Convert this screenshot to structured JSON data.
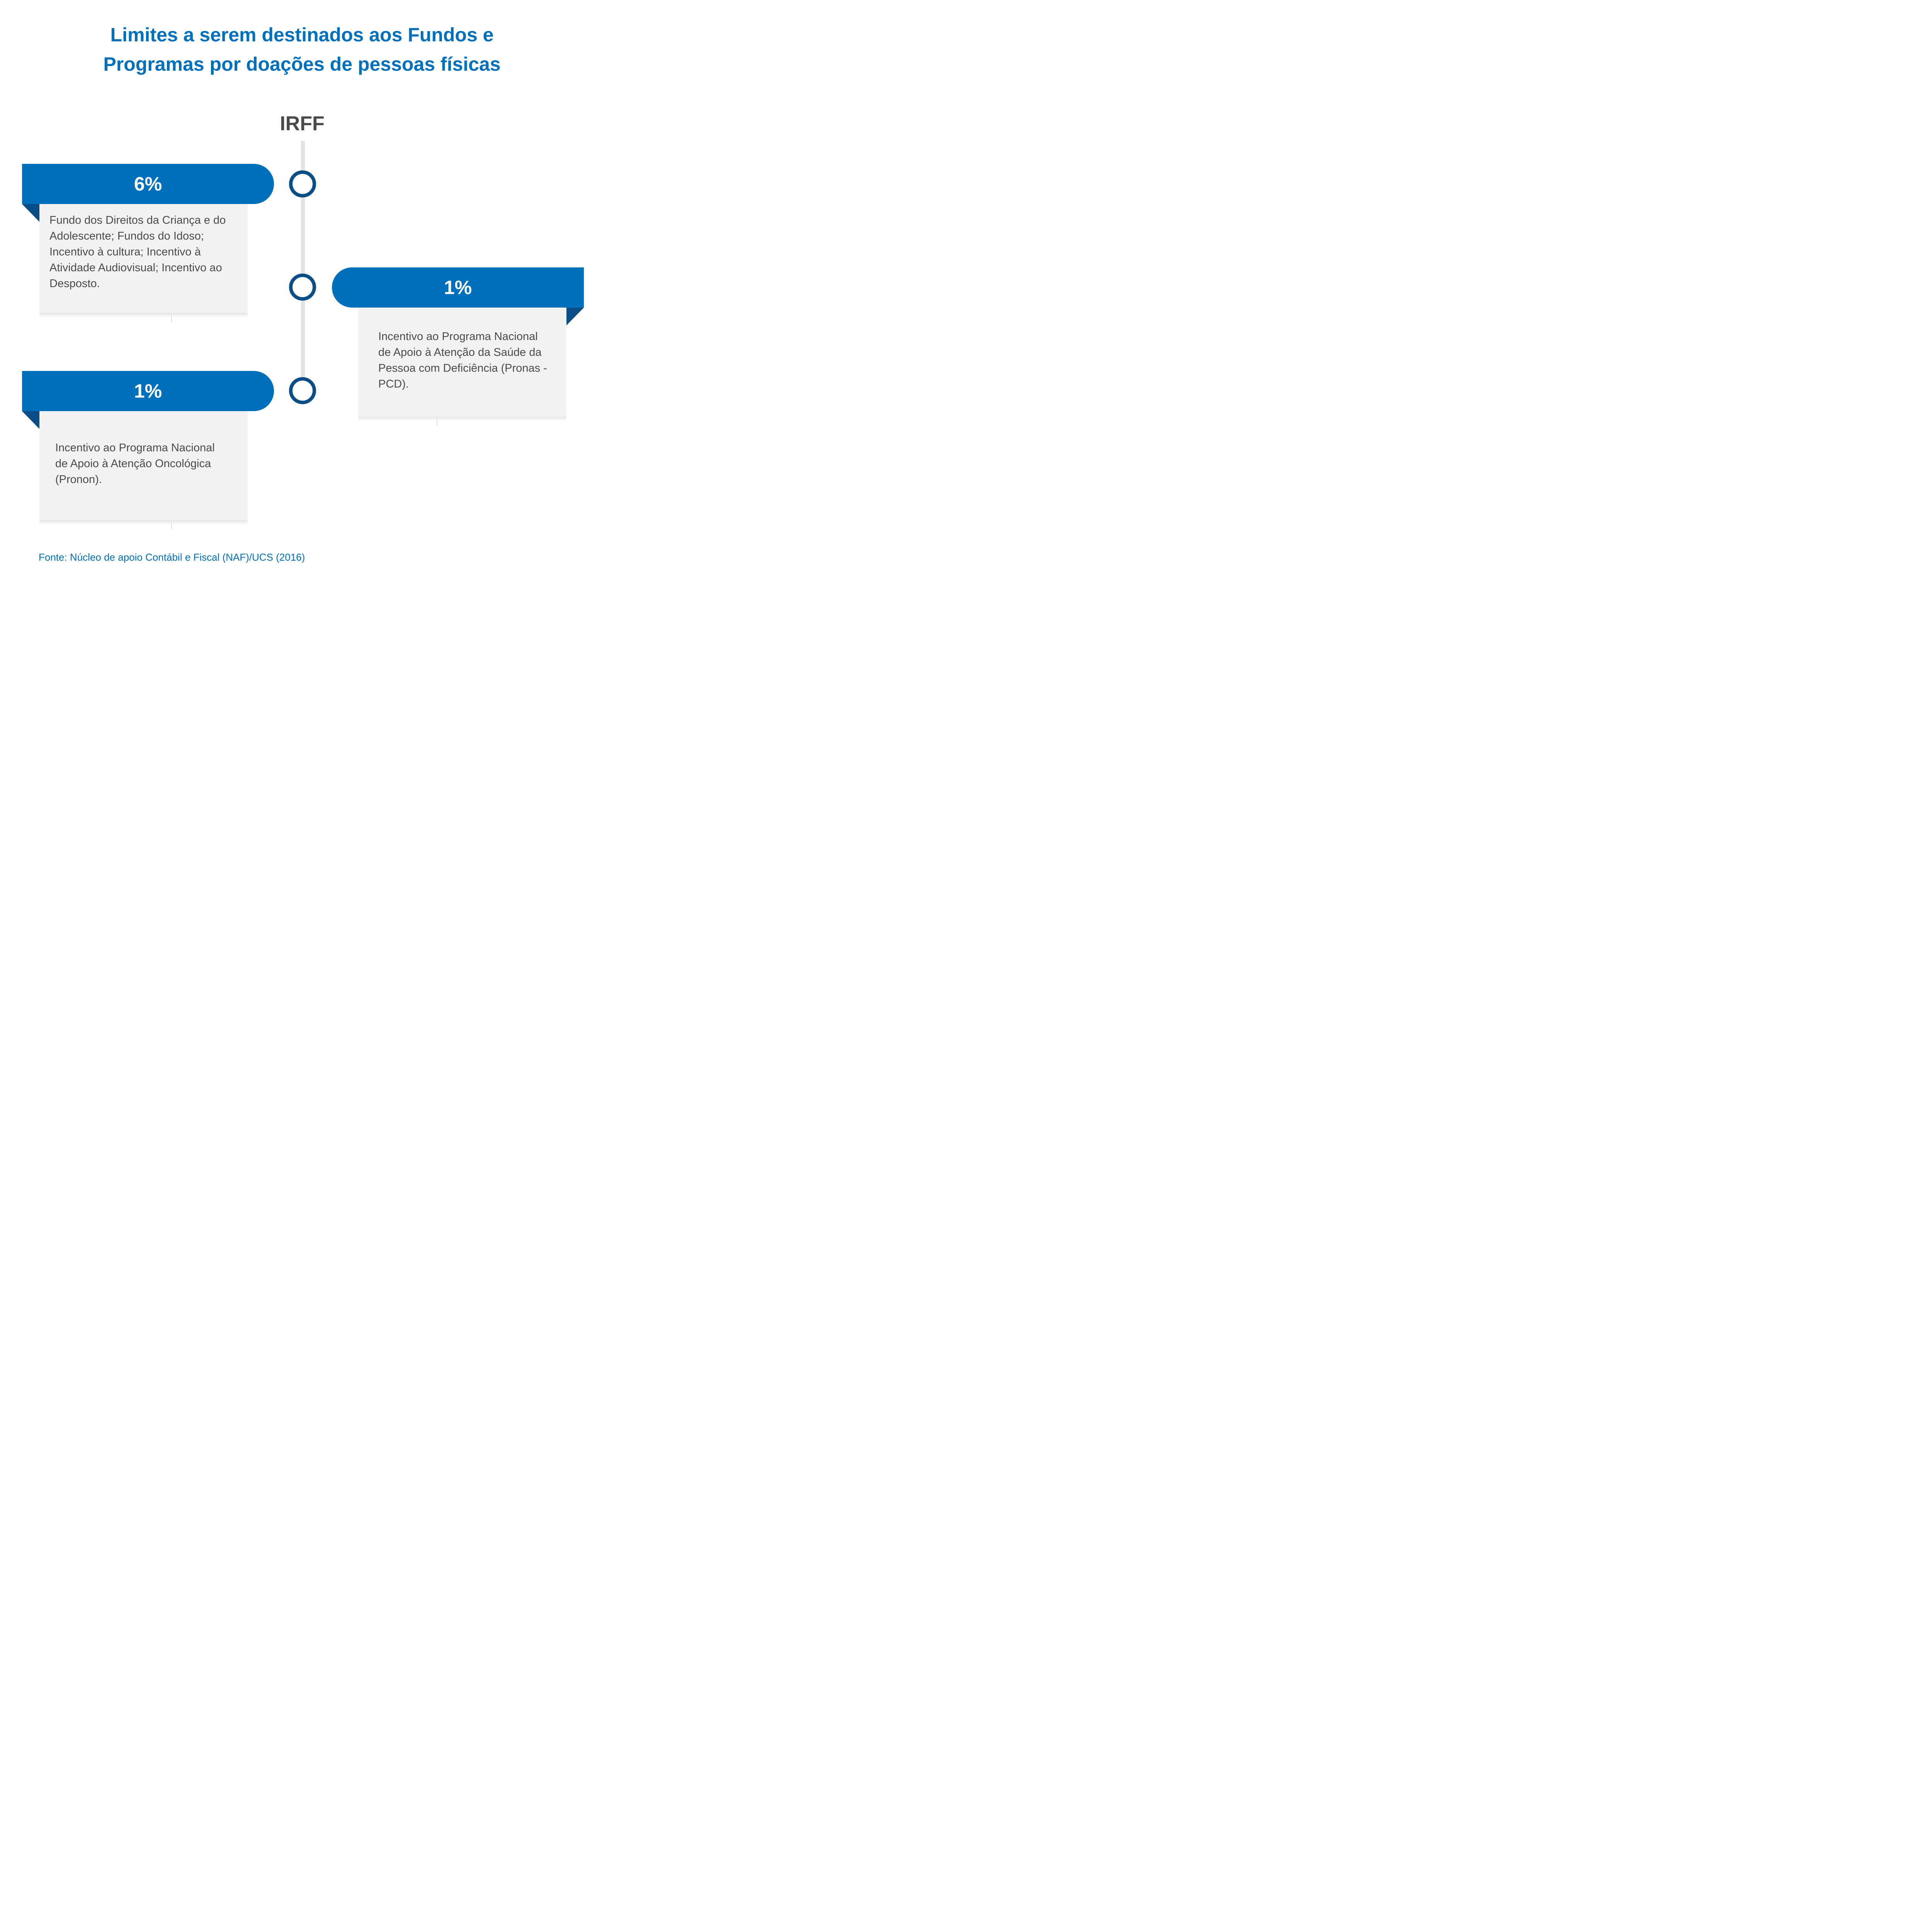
{
  "title": {
    "line1": "Limites a serem destinados aos Fundos e",
    "line2": "Programas por doações de pessoas físicas"
  },
  "center_label": "IRFF",
  "items": [
    {
      "percent": "6%",
      "side": "left",
      "description": "Fundo dos Direitos da Criança e do Adolescente; Fundos do Idoso; Incentivo à cultura; Incentivo à Atividade Audiovisual; Incentivo ao Desposto."
    },
    {
      "percent": "1%",
      "side": "right",
      "description": "Incentivo ao Programa Nacional de Apoio à Atenção da Saúde da Pessoa com Deficiência (Pronas - PCD)."
    },
    {
      "percent": "1%",
      "side": "left",
      "description": "Incentivo ao Programa Nacional de Apoio à Atenção Oncológica (Pronon)."
    }
  ],
  "source": "Fonte: Núcleo de apoio Contábil e Fiscal (NAF)/UCS (2016)",
  "colors": {
    "accent_blue": "#0070bc",
    "dark_blue": "#0b4d86",
    "card_bg": "#f1f2f4",
    "text_gray": "#4a4a4a",
    "timeline_gray": "#e3e3e5"
  }
}
